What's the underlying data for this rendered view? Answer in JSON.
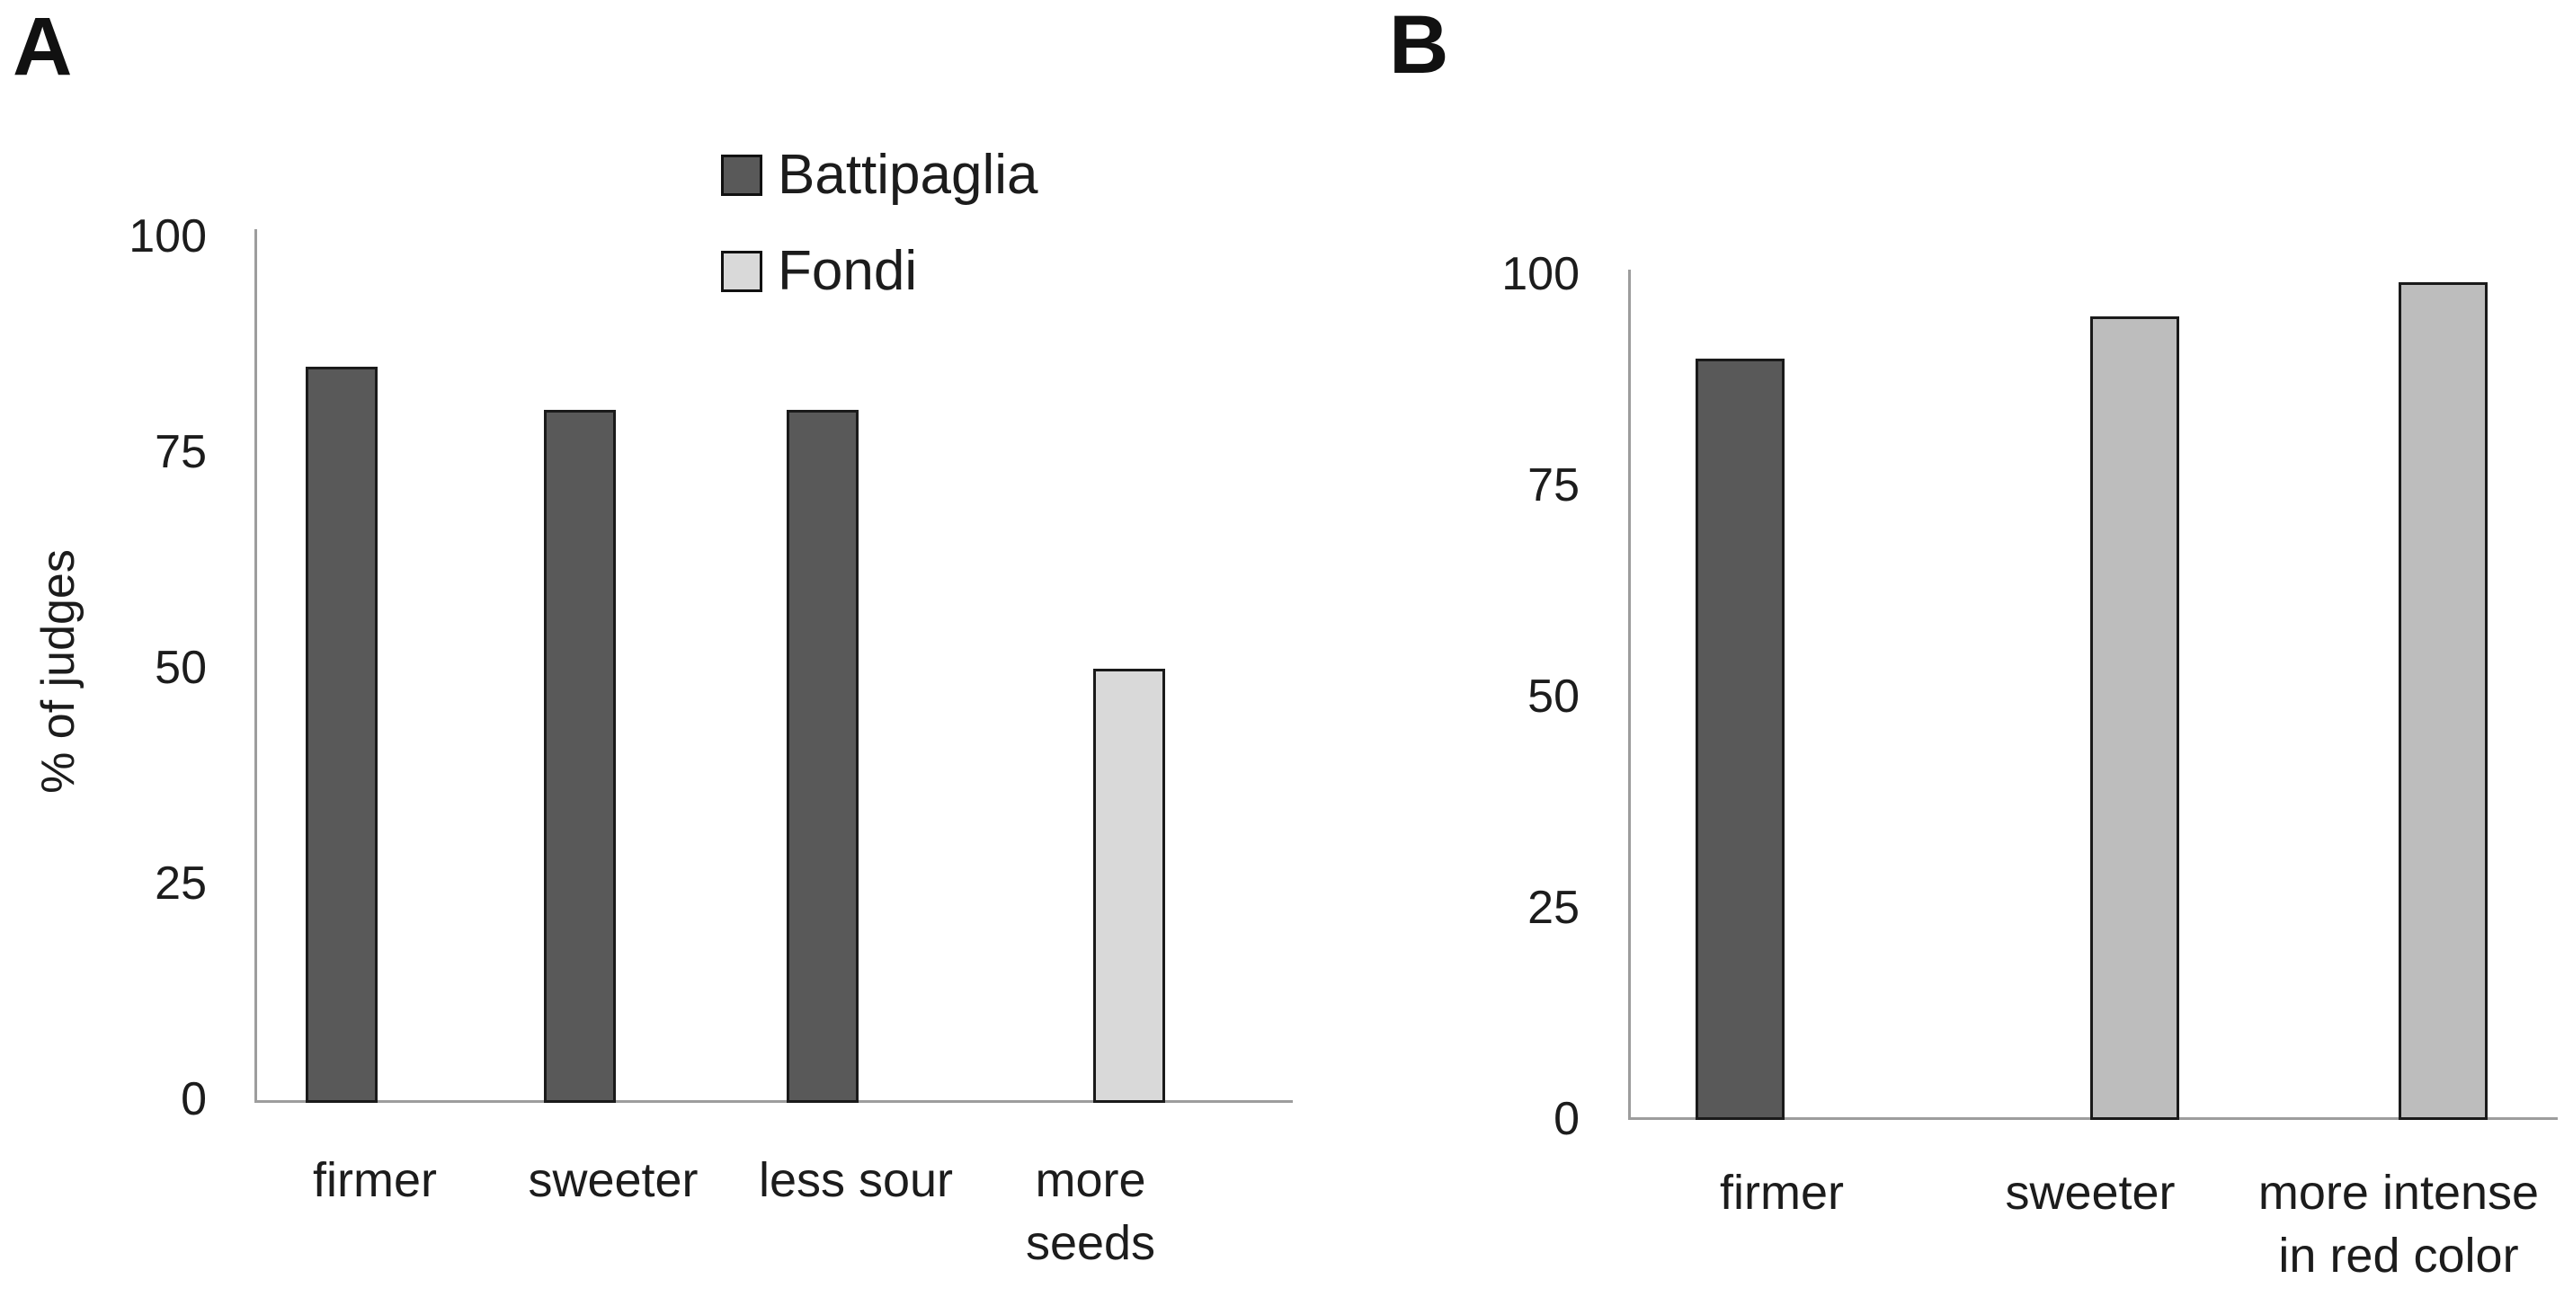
{
  "figure": {
    "background_color": "#ffffff",
    "axis_line_color": "#9d9d9d",
    "text_color": "#1c1c1c",
    "bar_border_color": "#1a1a1a"
  },
  "chart_data": [
    {
      "type": "bar",
      "panel_label": "A",
      "title": "",
      "ylabel": "% of judges",
      "xlabel": "",
      "ylim": [
        0,
        100
      ],
      "yticks": [
        0,
        25,
        50,
        75,
        100
      ],
      "grid": false,
      "legend_visible": true,
      "legend_position": "top-center",
      "categories": [
        "firmer",
        "sweeter",
        "less sour",
        "more\nseeds"
      ],
      "series": [
        {
          "name": "Battipaglia",
          "color": "#595959",
          "values": [
            85,
            80,
            80,
            null
          ]
        },
        {
          "name": "Fondi",
          "color": "#d9d9d9",
          "values": [
            null,
            null,
            null,
            50
          ]
        }
      ]
    },
    {
      "type": "bar",
      "panel_label": "B",
      "title": "",
      "ylabel": "",
      "xlabel": "",
      "ylim": [
        0,
        100
      ],
      "yticks": [
        0,
        25,
        50,
        75,
        100
      ],
      "grid": false,
      "legend_visible": false,
      "categories": [
        "firmer",
        "sweeter",
        "more intense\nin red color"
      ],
      "series": [
        {
          "name": "Battipaglia",
          "color": "#595959",
          "values": [
            90,
            null,
            null
          ]
        },
        {
          "name": "Fondi",
          "color": "#bdbdbd",
          "values": [
            null,
            95,
            99
          ]
        }
      ]
    }
  ]
}
